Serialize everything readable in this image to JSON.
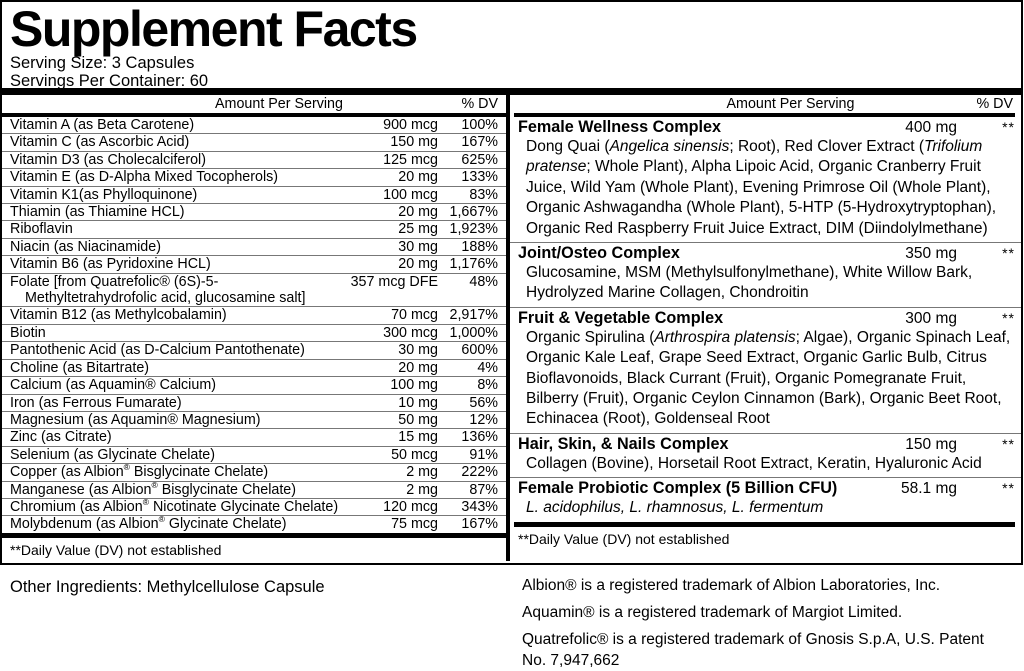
{
  "title": "Supplement Facts",
  "serving": {
    "size": "Serving Size: 3 Capsules",
    "per_container": "Servings Per Container: 60"
  },
  "colors": {
    "text": "#000000",
    "background": "#ffffff",
    "border": "#000000",
    "separator": "#777777"
  },
  "left": {
    "header": {
      "amount": "Amount Per Serving",
      "dv": "% DV"
    },
    "rows": [
      {
        "name": "Vitamin A (as Beta Carotene)",
        "amount": "900 mcg",
        "dv": "100%"
      },
      {
        "name": "Vitamin C (as Ascorbic Acid)",
        "amount": "150 mg",
        "dv": "167%"
      },
      {
        "name": "Vitamin D3 (as Cholecalciferol)",
        "amount": "125 mcg",
        "dv": "625%"
      },
      {
        "name": "Vitamin E (as D-Alpha Mixed Tocopherols)",
        "amount": "20 mg",
        "dv": "133%"
      },
      {
        "name": "Vitamin K1(as Phylloquinone)",
        "amount": "100 mcg",
        "dv": "83%"
      },
      {
        "name": "Thiamin (as Thiamine HCL)",
        "amount": "20 mg",
        "dv": "1,667%"
      },
      {
        "name": "Riboflavin",
        "amount": "25 mg",
        "dv": "1,923%"
      },
      {
        "name": "Niacin (as Niacinamide)",
        "amount": "30 mg",
        "dv": "188%"
      },
      {
        "name": "Vitamin B6 (as Pyridoxine HCL)",
        "amount": "20 mg",
        "dv": "1,176%"
      },
      {
        "name": "Folate [from Quatrefolic® (6S)-5-Methyltetrahydrofolic acid, glucosamine salt]",
        "name_html": "Folate [from Quatrefolic® (6S)-5-<br><span class='indent'></span>Methyltetrahydrofolic acid, glucosamine salt]",
        "amount": "357 mcg DFE",
        "dv": "48%"
      },
      {
        "name": "Vitamin B12 (as Methylcobalamin)",
        "amount": "70 mcg",
        "dv": "2,917%"
      },
      {
        "name": "Biotin",
        "amount": "300 mcg",
        "dv": "1,000%"
      },
      {
        "name": "Pantothenic Acid (as D-Calcium Pantothenate)",
        "amount": "30 mg",
        "dv": "600%"
      },
      {
        "name": "Choline (as Bitartrate)",
        "amount": "20 mg",
        "dv": "4%"
      },
      {
        "name": "Calcium (as Aquamin® Calcium)",
        "amount": "100 mg",
        "dv": "8%"
      },
      {
        "name": "Iron (as Ferrous Fumarate)",
        "amount": "10 mg",
        "dv": "56%"
      },
      {
        "name": "Magnesium (as Aquamin® Magnesium)",
        "amount": "50 mg",
        "dv": "12%"
      },
      {
        "name": "Zinc (as Citrate)",
        "amount": "15 mg",
        "dv": "136%"
      },
      {
        "name": "Selenium (as Glycinate Chelate)",
        "amount": "50 mcg",
        "dv": "91%"
      },
      {
        "name": "Copper (as Albion® Bisglycinate Chelate)",
        "name_html": "Copper (as Albion<sup>®</sup> Bisglycinate Chelate)",
        "amount": "2 mg",
        "dv": "222%"
      },
      {
        "name": "Manganese (as Albion® Bisglycinate Chelate)",
        "name_html": "Manganese (as Albion<sup>®</sup> Bisglycinate Chelate)",
        "amount": "2 mg",
        "dv": "87%"
      },
      {
        "name": "Chromium (as Albion® Nicotinate Glycinate Chelate)",
        "name_html": "Chromium (as Albion<sup>®</sup> Nicotinate Glycinate Chelate)",
        "amount": "120 mcg",
        "dv": "343%"
      },
      {
        "name": "Molybdenum (as Albion® Glycinate Chelate)",
        "name_html": "Molybdenum (as Albion<sup>®</sup> Glycinate Chelate)",
        "amount": "75 mcg",
        "dv": "167%"
      }
    ],
    "footnote": "**Daily Value (DV) not established",
    "other_ingredients": "Other Ingredients: Methylcellulose Capsule"
  },
  "right": {
    "header": {
      "amount": "Amount Per Serving",
      "dv": "% DV"
    },
    "complexes": [
      {
        "name": "Female Wellness Complex",
        "amount": "400 mg",
        "dv": "**",
        "desc": "Dong Quai (Angelica sinensis; Root), Red Clover Extract (Trifolium pratense; Whole Plant), Alpha Lipoic Acid, Organic Cranberry Fruit Juice, Wild Yam (Whole Plant), Evening Primrose Oil (Whole Plant), Organic Ashwagandha (Whole Plant), 5-HTP (5-Hydroxytryptophan), Organic Red Raspberry Fruit Juice Extract, DIM (Diindolylmethane)",
        "desc_html": "Dong Quai (<i>Angelica sinensis</i>; Root), Red Clover Extract (<i>Trifolium pratense</i>; Whole Plant), Alpha Lipoic Acid, Organic Cranberry Fruit Juice, Wild Yam (Whole Plant), Evening Primrose Oil (Whole Plant), Organic Ashwagandha (Whole Plant), 5-HTP (5-Hydroxytryptophan), Organic Red Raspberry Fruit Juice Extract, DIM (Diindolylmethane)"
      },
      {
        "name": "Joint/Osteo Complex",
        "amount": "350 mg",
        "dv": "**",
        "desc": "Glucosamine, MSM (Methylsulfonylmethane), White Willow Bark, Hydrolyzed Marine Collagen, Chondroitin",
        "desc_html": "Glucosamine, MSM (Methylsulfonylmethane), White Willow Bark, Hydrolyzed Marine Collagen, Chondroitin"
      },
      {
        "name": "Fruit & Vegetable Complex",
        "amount": "300 mg",
        "dv": "**",
        "desc": "Organic Spirulina (Arthrospira platensis; Algae), Organic Spinach Leaf, Organic Kale Leaf, Grape Seed Extract, Organic Garlic Bulb, Citrus Bioflavonoids, Black Currant (Fruit), Organic Pomegranate Fruit, Bilberry (Fruit), Organic Ceylon Cinnamon (Bark), Organic Beet Root, Echinacea (Root), Goldenseal Root",
        "desc_html": "Organic Spirulina (<i>Arthrospira platensis</i>; Algae), Organic Spinach Leaf, Organic Kale Leaf, Grape Seed Extract, Organic Garlic Bulb, Citrus Bioflavonoids, Black Currant (Fruit), Organic Pomegranate Fruit, Bilberry (Fruit), Organic Ceylon Cinnamon (Bark), Organic Beet Root, Echinacea (Root), Goldenseal Root"
      },
      {
        "name": "Hair, Skin, & Nails Complex",
        "amount": "150 mg",
        "dv": "**",
        "desc": "Collagen (Bovine), Horsetail Root Extract, Keratin, Hyaluronic Acid",
        "desc_html": "Collagen (Bovine), Horsetail Root Extract, Keratin, Hyaluronic Acid"
      },
      {
        "name": "Female Probiotic Complex (5 Billion CFU)",
        "amount": "58.1 mg",
        "dv": "**",
        "desc": "L. acidophilus, L. rhamnosus, L. fermentum",
        "desc_html": "<i>L. acidophilus, L. rhamnosus, L. fermentum</i>"
      }
    ],
    "footnote": "**Daily Value (DV) not established",
    "trademarks": [
      "Albion® is a registered trademark of Albion Laboratories, Inc.",
      "Aquamin® is a registered trademark of Margiot Limited.",
      "Quatrefolic® is a registered trademark of Gnosis S.p.A, U.S. Patent No. 7,947,662"
    ]
  }
}
